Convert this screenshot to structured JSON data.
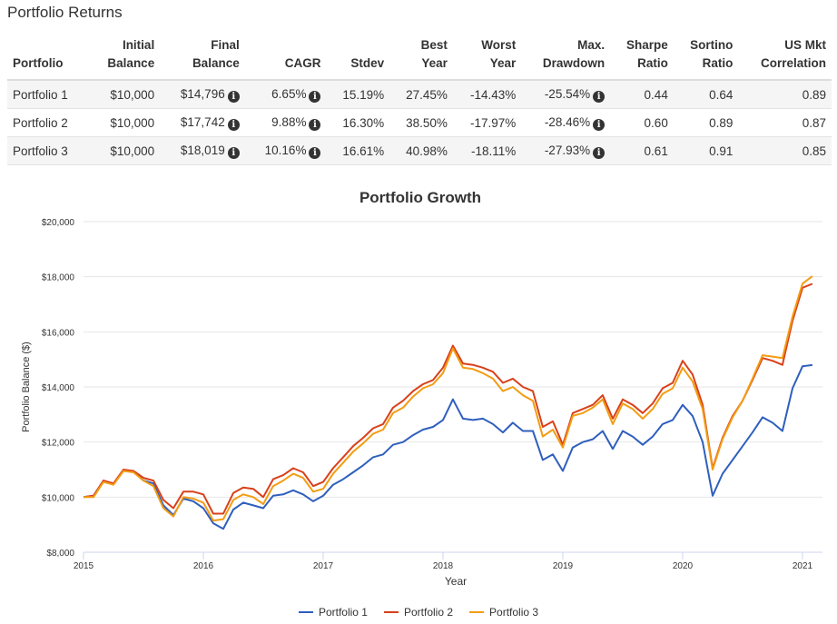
{
  "section_title": "Portfolio Returns",
  "table": {
    "headers": {
      "portfolio": "Portfolio",
      "initial_1": "Initial",
      "initial_2": "Balance",
      "final_1": "Final",
      "final_2": "Balance",
      "cagr": "CAGR",
      "stdev": "Stdev",
      "best_1": "Best",
      "best_2": "Year",
      "worst_1": "Worst",
      "worst_2": "Year",
      "maxdd_1": "Max.",
      "maxdd_2": "Drawdown",
      "sharpe_1": "Sharpe",
      "sharpe_2": "Ratio",
      "sortino_1": "Sortino",
      "sortino_2": "Ratio",
      "usmkt_1": "US Mkt",
      "usmkt_2": "Correlation"
    },
    "rows": [
      {
        "name": "Portfolio 1",
        "initial": "$10,000",
        "final": "$14,796",
        "cagr": "6.65%",
        "stdev": "15.19%",
        "best": "27.45%",
        "worst": "-14.43%",
        "maxdd": "-25.54%",
        "sharpe": "0.44",
        "sortino": "0.64",
        "usmkt": "0.89"
      },
      {
        "name": "Portfolio 2",
        "initial": "$10,000",
        "final": "$17,742",
        "cagr": "9.88%",
        "stdev": "16.30%",
        "best": "38.50%",
        "worst": "-17.97%",
        "maxdd": "-28.46%",
        "sharpe": "0.60",
        "sortino": "0.89",
        "usmkt": "0.87"
      },
      {
        "name": "Portfolio 3",
        "initial": "$10,000",
        "final": "$18,019",
        "cagr": "10.16%",
        "stdev": "16.61%",
        "best": "40.98%",
        "worst": "-18.11%",
        "maxdd": "-27.93%",
        "sharpe": "0.61",
        "sortino": "0.91",
        "usmkt": "0.85"
      }
    ]
  },
  "chart_data": {
    "type": "line",
    "title": "Portfolio Growth",
    "xlabel": "Year",
    "ylabel": "Portfolio Balance ($)",
    "xlim": [
      2015.0,
      2021.167
    ],
    "ylim": [
      8000,
      20000
    ],
    "x_ticks": [
      2015,
      2016,
      2017,
      2018,
      2019,
      2020,
      2021
    ],
    "y_ticks": [
      8000,
      10000,
      12000,
      14000,
      16000,
      18000,
      20000
    ],
    "y_tick_labels": [
      "$8,000",
      "$10,000",
      "$12,000",
      "$14,000",
      "$16,000",
      "$18,000",
      "$20,000"
    ],
    "grid": true,
    "legend_position": "bottom",
    "series": [
      {
        "name": "Portfolio 1",
        "color": "#2f5fbd",
        "points": [
          [
            2015.0,
            10000
          ],
          [
            2015.083,
            10050
          ],
          [
            2015.167,
            10600
          ],
          [
            2015.25,
            10480
          ],
          [
            2015.333,
            10950
          ],
          [
            2015.417,
            10930
          ],
          [
            2015.5,
            10600
          ],
          [
            2015.583,
            10500
          ],
          [
            2015.667,
            9700
          ],
          [
            2015.75,
            9350
          ],
          [
            2015.833,
            9950
          ],
          [
            2015.917,
            9850
          ],
          [
            2016.0,
            9600
          ],
          [
            2016.083,
            9050
          ],
          [
            2016.167,
            8850
          ],
          [
            2016.25,
            9550
          ],
          [
            2016.333,
            9800
          ],
          [
            2016.417,
            9700
          ],
          [
            2016.5,
            9600
          ],
          [
            2016.583,
            10050
          ],
          [
            2016.667,
            10100
          ],
          [
            2016.75,
            10250
          ],
          [
            2016.833,
            10100
          ],
          [
            2016.917,
            9850
          ],
          [
            2017.0,
            10050
          ],
          [
            2017.083,
            10450
          ],
          [
            2017.167,
            10650
          ],
          [
            2017.25,
            10900
          ],
          [
            2017.333,
            11150
          ],
          [
            2017.417,
            11450
          ],
          [
            2017.5,
            11550
          ],
          [
            2017.583,
            11900
          ],
          [
            2017.667,
            12000
          ],
          [
            2017.75,
            12250
          ],
          [
            2017.833,
            12450
          ],
          [
            2017.917,
            12550
          ],
          [
            2018.0,
            12800
          ],
          [
            2018.083,
            13550
          ],
          [
            2018.167,
            12850
          ],
          [
            2018.25,
            12800
          ],
          [
            2018.333,
            12850
          ],
          [
            2018.417,
            12650
          ],
          [
            2018.5,
            12350
          ],
          [
            2018.583,
            12700
          ],
          [
            2018.667,
            12400
          ],
          [
            2018.75,
            12400
          ],
          [
            2018.833,
            11350
          ],
          [
            2018.917,
            11550
          ],
          [
            2019.0,
            10950
          ],
          [
            2019.083,
            11800
          ],
          [
            2019.167,
            12000
          ],
          [
            2019.25,
            12100
          ],
          [
            2019.333,
            12400
          ],
          [
            2019.417,
            11750
          ],
          [
            2019.5,
            12400
          ],
          [
            2019.583,
            12200
          ],
          [
            2019.667,
            11900
          ],
          [
            2019.75,
            12200
          ],
          [
            2019.833,
            12650
          ],
          [
            2019.917,
            12800
          ],
          [
            2020.0,
            13350
          ],
          [
            2020.083,
            12950
          ],
          [
            2020.167,
            12000
          ],
          [
            2020.25,
            10050
          ],
          [
            2020.333,
            10850
          ],
          [
            2020.417,
            11350
          ],
          [
            2020.5,
            11850
          ],
          [
            2020.583,
            12350
          ],
          [
            2020.667,
            12900
          ],
          [
            2020.75,
            12700
          ],
          [
            2020.833,
            12400
          ],
          [
            2020.917,
            13950
          ],
          [
            2021.0,
            14750
          ],
          [
            2021.083,
            14796
          ]
        ]
      },
      {
        "name": "Portfolio 2",
        "color": "#d9401a",
        "points": [
          [
            2015.0,
            10000
          ],
          [
            2015.083,
            10050
          ],
          [
            2015.167,
            10600
          ],
          [
            2015.25,
            10500
          ],
          [
            2015.333,
            11000
          ],
          [
            2015.417,
            10950
          ],
          [
            2015.5,
            10700
          ],
          [
            2015.583,
            10600
          ],
          [
            2015.667,
            9900
          ],
          [
            2015.75,
            9600
          ],
          [
            2015.833,
            10200
          ],
          [
            2015.917,
            10200
          ],
          [
            2016.0,
            10100
          ],
          [
            2016.083,
            9400
          ],
          [
            2016.167,
            9400
          ],
          [
            2016.25,
            10150
          ],
          [
            2016.333,
            10350
          ],
          [
            2016.417,
            10300
          ],
          [
            2016.5,
            10000
          ],
          [
            2016.583,
            10650
          ],
          [
            2016.667,
            10800
          ],
          [
            2016.75,
            11050
          ],
          [
            2016.833,
            10900
          ],
          [
            2016.917,
            10400
          ],
          [
            2017.0,
            10550
          ],
          [
            2017.083,
            11050
          ],
          [
            2017.167,
            11450
          ],
          [
            2017.25,
            11850
          ],
          [
            2017.333,
            12150
          ],
          [
            2017.417,
            12500
          ],
          [
            2017.5,
            12650
          ],
          [
            2017.583,
            13250
          ],
          [
            2017.667,
            13500
          ],
          [
            2017.75,
            13850
          ],
          [
            2017.833,
            14100
          ],
          [
            2017.917,
            14250
          ],
          [
            2018.0,
            14700
          ],
          [
            2018.083,
            15500
          ],
          [
            2018.167,
            14850
          ],
          [
            2018.25,
            14800
          ],
          [
            2018.333,
            14700
          ],
          [
            2018.417,
            14550
          ],
          [
            2018.5,
            14150
          ],
          [
            2018.583,
            14300
          ],
          [
            2018.667,
            14000
          ],
          [
            2018.75,
            13850
          ],
          [
            2018.833,
            12550
          ],
          [
            2018.917,
            12750
          ],
          [
            2019.0,
            11900
          ],
          [
            2019.083,
            13050
          ],
          [
            2019.167,
            13200
          ],
          [
            2019.25,
            13350
          ],
          [
            2019.333,
            13700
          ],
          [
            2019.417,
            12850
          ],
          [
            2019.5,
            13550
          ],
          [
            2019.583,
            13350
          ],
          [
            2019.667,
            13050
          ],
          [
            2019.75,
            13400
          ],
          [
            2019.833,
            13950
          ],
          [
            2019.917,
            14150
          ],
          [
            2020.0,
            14950
          ],
          [
            2020.083,
            14450
          ],
          [
            2020.167,
            13350
          ],
          [
            2020.25,
            11050
          ],
          [
            2020.333,
            12150
          ],
          [
            2020.417,
            12950
          ],
          [
            2020.5,
            13500
          ],
          [
            2020.583,
            14250
          ],
          [
            2020.667,
            15050
          ],
          [
            2020.75,
            14950
          ],
          [
            2020.833,
            14800
          ],
          [
            2020.917,
            16400
          ],
          [
            2021.0,
            17600
          ],
          [
            2021.083,
            17742
          ]
        ]
      },
      {
        "name": "Portfolio 3",
        "color": "#f39c12",
        "points": [
          [
            2015.0,
            10000
          ],
          [
            2015.083,
            10000
          ],
          [
            2015.167,
            10550
          ],
          [
            2015.25,
            10450
          ],
          [
            2015.333,
            10950
          ],
          [
            2015.417,
            10900
          ],
          [
            2015.5,
            10600
          ],
          [
            2015.583,
            10400
          ],
          [
            2015.667,
            9600
          ],
          [
            2015.75,
            9300
          ],
          [
            2015.833,
            10000
          ],
          [
            2015.917,
            9950
          ],
          [
            2016.0,
            9800
          ],
          [
            2016.083,
            9150
          ],
          [
            2016.167,
            9200
          ],
          [
            2016.25,
            9900
          ],
          [
            2016.333,
            10100
          ],
          [
            2016.417,
            10000
          ],
          [
            2016.5,
            9750
          ],
          [
            2016.583,
            10400
          ],
          [
            2016.667,
            10600
          ],
          [
            2016.75,
            10850
          ],
          [
            2016.833,
            10700
          ],
          [
            2016.917,
            10200
          ],
          [
            2017.0,
            10300
          ],
          [
            2017.083,
            10850
          ],
          [
            2017.167,
            11250
          ],
          [
            2017.25,
            11650
          ],
          [
            2017.333,
            11950
          ],
          [
            2017.417,
            12300
          ],
          [
            2017.5,
            12450
          ],
          [
            2017.583,
            13050
          ],
          [
            2017.667,
            13250
          ],
          [
            2017.75,
            13650
          ],
          [
            2017.833,
            13950
          ],
          [
            2017.917,
            14100
          ],
          [
            2018.0,
            14500
          ],
          [
            2018.083,
            15400
          ],
          [
            2018.167,
            14700
          ],
          [
            2018.25,
            14650
          ],
          [
            2018.333,
            14500
          ],
          [
            2018.417,
            14300
          ],
          [
            2018.5,
            13850
          ],
          [
            2018.583,
            14000
          ],
          [
            2018.667,
            13700
          ],
          [
            2018.75,
            13500
          ],
          [
            2018.833,
            12200
          ],
          [
            2018.917,
            12450
          ],
          [
            2019.0,
            11800
          ],
          [
            2019.083,
            12950
          ],
          [
            2019.167,
            13050
          ],
          [
            2019.25,
            13250
          ],
          [
            2019.333,
            13550
          ],
          [
            2019.417,
            12650
          ],
          [
            2019.5,
            13400
          ],
          [
            2019.583,
            13200
          ],
          [
            2019.667,
            12850
          ],
          [
            2019.75,
            13200
          ],
          [
            2019.833,
            13750
          ],
          [
            2019.917,
            13950
          ],
          [
            2020.0,
            14700
          ],
          [
            2020.083,
            14200
          ],
          [
            2020.167,
            13200
          ],
          [
            2020.25,
            11000
          ],
          [
            2020.333,
            12100
          ],
          [
            2020.417,
            12900
          ],
          [
            2020.5,
            13500
          ],
          [
            2020.583,
            14300
          ],
          [
            2020.667,
            15150
          ],
          [
            2020.75,
            15100
          ],
          [
            2020.833,
            15050
          ],
          [
            2020.917,
            16550
          ],
          [
            2021.0,
            17750
          ],
          [
            2021.083,
            18019
          ]
        ]
      }
    ]
  }
}
